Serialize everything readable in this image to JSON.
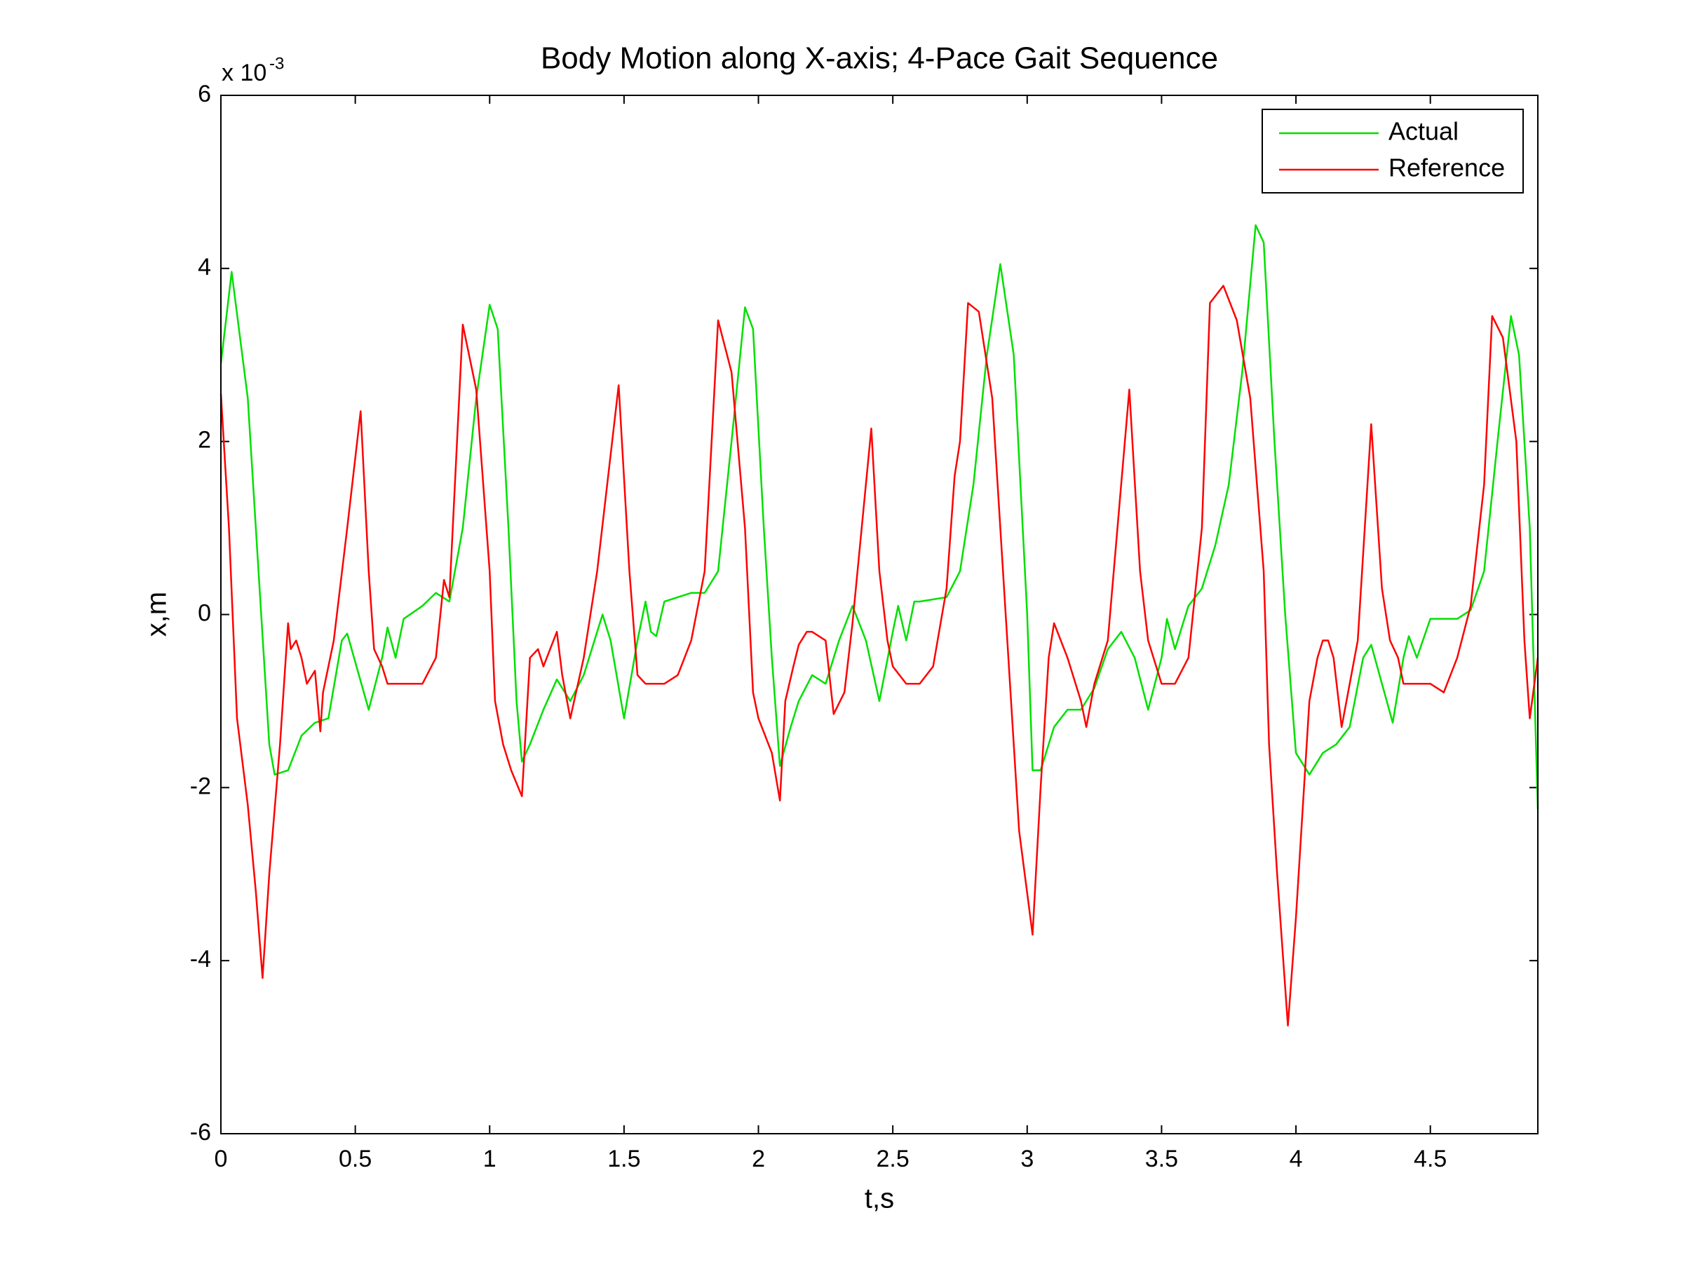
{
  "chart_data": {
    "type": "line",
    "title": "Body Motion along X-axis; 4-Pace Gait Sequence",
    "xlabel": "t,s",
    "ylabel": "x,m",
    "y_multiplier": "x 10",
    "y_multiplier_exponent": "-3",
    "xlim": [
      0,
      4.9
    ],
    "ylim": [
      -6,
      6
    ],
    "xticks": [
      0,
      0.5,
      1,
      1.5,
      2,
      2.5,
      3,
      3.5,
      4,
      4.5
    ],
    "yticks": [
      -6,
      -4,
      -2,
      0,
      2,
      4,
      6
    ],
    "grid": false,
    "legend": "northeast",
    "series": [
      {
        "name": "Actual",
        "color": "#00e000",
        "x": [
          0,
          0.04,
          0.1,
          0.15,
          0.18,
          0.2,
          0.25,
          0.3,
          0.35,
          0.4,
          0.45,
          0.47,
          0.55,
          0.6,
          0.62,
          0.65,
          0.68,
          0.75,
          0.8,
          0.85,
          0.9,
          0.95,
          1.0,
          1.03,
          1.07,
          1.1,
          1.12,
          1.15,
          1.2,
          1.25,
          1.3,
          1.35,
          1.42,
          1.45,
          1.5,
          1.55,
          1.58,
          1.6,
          1.62,
          1.65,
          1.7,
          1.75,
          1.8,
          1.85,
          1.9,
          1.95,
          1.98,
          2.02,
          2.05,
          2.08,
          2.12,
          2.15,
          2.2,
          2.25,
          2.3,
          2.35,
          2.4,
          2.45,
          2.5,
          2.52,
          2.55,
          2.58,
          2.6,
          2.7,
          2.75,
          2.8,
          2.85,
          2.9,
          2.95,
          3.0,
          3.02,
          3.05,
          3.1,
          3.15,
          3.2,
          3.25,
          3.3,
          3.35,
          3.4,
          3.45,
          3.5,
          3.52,
          3.55,
          3.6,
          3.65,
          3.7,
          3.75,
          3.8,
          3.85,
          3.88,
          3.92,
          3.96,
          4.0,
          4.05,
          4.1,
          4.15,
          4.2,
          4.25,
          4.28,
          4.32,
          4.36,
          4.4,
          4.42,
          4.45,
          4.5,
          4.6,
          4.65,
          4.7,
          4.75,
          4.8,
          4.83,
          4.87,
          4.9
        ],
        "values": [
          2.9,
          3.96,
          2.5,
          0,
          -1.5,
          -1.85,
          -1.8,
          -1.4,
          -1.25,
          -1.2,
          -0.3,
          -0.22,
          -1.1,
          -0.5,
          -0.15,
          -0.5,
          -0.05,
          0.1,
          0.25,
          0.15,
          1.0,
          2.5,
          3.58,
          3.3,
          1.0,
          -1.0,
          -1.7,
          -1.5,
          -1.1,
          -0.75,
          -1.0,
          -0.7,
          0,
          -0.3,
          -1.2,
          -0.3,
          0.15,
          -0.2,
          -0.25,
          0.15,
          0.2,
          0.25,
          0.25,
          0.5,
          2.0,
          3.55,
          3.3,
          1.0,
          -0.5,
          -1.75,
          -1.3,
          -1.0,
          -0.7,
          -0.8,
          -0.3,
          0.1,
          -0.3,
          -1.0,
          -0.2,
          0.1,
          -0.3,
          0.15,
          0.15,
          0.2,
          0.5,
          1.5,
          3.0,
          4.05,
          3.0,
          0,
          -1.8,
          -1.8,
          -1.3,
          -1.1,
          -1.1,
          -0.85,
          -0.4,
          -0.2,
          -0.5,
          -1.1,
          -0.5,
          -0.05,
          -0.4,
          0.1,
          0.3,
          0.8,
          1.5,
          2.8,
          4.5,
          4.3,
          2.0,
          0,
          -1.6,
          -1.85,
          -1.6,
          -1.5,
          -1.3,
          -0.5,
          -0.35,
          -0.8,
          -1.25,
          -0.5,
          -0.25,
          -0.5,
          -0.05,
          -0.05,
          0.05,
          0.5,
          2.0,
          3.45,
          3.0,
          1.0,
          -2.25
        ]
      },
      {
        "name": "Reference",
        "color": "#ff0000",
        "x": [
          0,
          0.03,
          0.06,
          0.1,
          0.13,
          0.155,
          0.18,
          0.22,
          0.25,
          0.26,
          0.28,
          0.3,
          0.32,
          0.35,
          0.37,
          0.38,
          0.42,
          0.47,
          0.52,
          0.55,
          0.57,
          0.6,
          0.62,
          0.7,
          0.75,
          0.8,
          0.83,
          0.85,
          0.9,
          0.95,
          1.0,
          1.02,
          1.05,
          1.08,
          1.12,
          1.15,
          1.18,
          1.2,
          1.25,
          1.27,
          1.3,
          1.35,
          1.4,
          1.48,
          1.52,
          1.55,
          1.58,
          1.65,
          1.7,
          1.75,
          1.8,
          1.85,
          1.9,
          1.95,
          1.98,
          2.0,
          2.05,
          2.08,
          2.1,
          2.13,
          2.15,
          2.18,
          2.2,
          2.25,
          2.28,
          2.32,
          2.35,
          2.42,
          2.45,
          2.48,
          2.5,
          2.55,
          2.6,
          2.65,
          2.7,
          2.73,
          2.75,
          2.78,
          2.82,
          2.87,
          2.92,
          2.97,
          3.02,
          3.05,
          3.08,
          3.1,
          3.15,
          3.2,
          3.22,
          3.25,
          3.3,
          3.38,
          3.42,
          3.45,
          3.48,
          3.5,
          3.55,
          3.6,
          3.65,
          3.68,
          3.73,
          3.78,
          3.83,
          3.88,
          3.9,
          3.93,
          3.97,
          4.0,
          4.05,
          4.08,
          4.1,
          4.12,
          4.14,
          4.17,
          4.2,
          4.23,
          4.28,
          4.32,
          4.35,
          4.38,
          4.4,
          4.45,
          4.5,
          4.55,
          4.6,
          4.65,
          4.7,
          4.73,
          4.77,
          4.82,
          4.85,
          4.87,
          4.9
        ],
        "values": [
          2.55,
          1.0,
          -1.2,
          -2.2,
          -3.2,
          -4.2,
          -3.0,
          -1.5,
          -0.1,
          -0.4,
          -0.3,
          -0.5,
          -0.8,
          -0.65,
          -1.35,
          -0.9,
          -0.3,
          1.0,
          2.35,
          0.5,
          -0.4,
          -0.6,
          -0.8,
          -0.8,
          -0.8,
          -0.5,
          0.4,
          0.2,
          3.35,
          2.6,
          0.5,
          -1.0,
          -1.5,
          -1.8,
          -2.1,
          -0.5,
          -0.4,
          -0.6,
          -0.2,
          -0.7,
          -1.2,
          -0.5,
          0.5,
          2.65,
          0.5,
          -0.7,
          -0.8,
          -0.8,
          -0.7,
          -0.3,
          0.5,
          3.4,
          2.8,
          1.0,
          -0.9,
          -1.2,
          -1.6,
          -2.15,
          -1.0,
          -0.6,
          -0.35,
          -0.2,
          -0.2,
          -0.3,
          -1.15,
          -0.9,
          -0.1,
          2.15,
          0.5,
          -0.3,
          -0.6,
          -0.8,
          -0.8,
          -0.6,
          0.3,
          1.6,
          2.0,
          3.6,
          3.5,
          2.5,
          0,
          -2.5,
          -3.7,
          -2.0,
          -0.5,
          -0.1,
          -0.5,
          -1.0,
          -1.3,
          -0.8,
          -0.3,
          2.6,
          0.5,
          -0.3,
          -0.6,
          -0.8,
          -0.8,
          -0.5,
          1.0,
          3.6,
          3.8,
          3.4,
          2.5,
          0.5,
          -1.5,
          -3.0,
          -4.75,
          -3.5,
          -1.0,
          -0.5,
          -0.3,
          -0.3,
          -0.5,
          -1.3,
          -0.8,
          -0.3,
          2.2,
          0.3,
          -0.3,
          -0.5,
          -0.8,
          -0.8,
          -0.8,
          -0.9,
          -0.5,
          0.1,
          1.5,
          3.45,
          3.2,
          2.0,
          -0.3,
          -1.2,
          -0.5
        ]
      }
    ]
  }
}
